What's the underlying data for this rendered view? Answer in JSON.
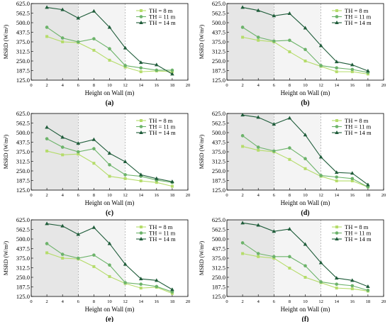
{
  "figure": {
    "colors": {
      "shade_dark": "#e6e6e6",
      "shade_light": "#f4f4f4",
      "th8": "#b5dc6a",
      "th11": "#6cb36a",
      "th14": "#1f5c3a"
    }
  },
  "chart_data": [
    {
      "type": "line",
      "panel_label": "(a)",
      "xlabel": "Height on Wall (m)",
      "ylabel": "MSRD (W/m²)",
      "xlim": [
        0,
        20
      ],
      "ylim": [
        125,
        625
      ],
      "xticks": [
        0,
        2,
        4,
        6,
        8,
        10,
        12,
        14,
        16,
        18,
        20
      ],
      "yticks": [
        "125.0",
        "187.5",
        "250.0",
        "312.5",
        "375.0",
        "437.5",
        "500.0",
        "562.5",
        "625.0"
      ],
      "shaded_regions": [
        [
          0,
          6
        ],
        [
          6,
          12
        ],
        [
          12,
          20
        ]
      ],
      "legend_position": "top-right",
      "x": [
        2,
        4,
        6,
        8,
        10,
        12,
        14,
        16,
        18
      ],
      "series": [
        {
          "name": "TH = 8 m",
          "values": [
            410,
            375,
            370,
            320,
            255,
            210,
            180,
            185,
            180
          ]
        },
        {
          "name": "TH = 11 m",
          "values": [
            470,
            400,
            375,
            395,
            330,
            220,
            205,
            190,
            190
          ]
        },
        {
          "name": "TH = 14 m",
          "values": [
            600,
            585,
            530,
            575,
            470,
            335,
            240,
            225,
            165
          ]
        }
      ]
    },
    {
      "type": "line",
      "panel_label": "(b)",
      "xlabel": "Height on Wall (m)",
      "ylabel": "MSRD (W/m²)",
      "xlim": [
        0,
        20
      ],
      "ylim": [
        125,
        625
      ],
      "xticks": [
        0,
        2,
        4,
        6,
        8,
        10,
        12,
        14,
        16,
        18,
        20
      ],
      "yticks": [
        "125.0",
        "187.5",
        "250.0",
        "312.5",
        "375.0",
        "437.5",
        "500.0",
        "562.5",
        "625.0"
      ],
      "shaded_regions": [
        [
          0,
          6
        ],
        [
          6,
          12
        ],
        [
          12,
          20
        ]
      ],
      "legend_position": "top-right",
      "x": [
        2,
        4,
        6,
        8,
        10,
        12,
        14,
        16,
        18
      ],
      "series": [
        {
          "name": "TH = 8 m",
          "values": [
            405,
            385,
            375,
            310,
            250,
            215,
            180,
            180,
            165
          ]
        },
        {
          "name": "TH = 11 m",
          "values": [
            470,
            405,
            380,
            385,
            325,
            220,
            205,
            195,
            175
          ]
        },
        {
          "name": "TH = 14 m",
          "values": [
            600,
            580,
            545,
            560,
            465,
            350,
            245,
            225,
            185
          ]
        }
      ]
    },
    {
      "type": "line",
      "panel_label": "(c)",
      "xlabel": "Height on Wall (m)",
      "ylabel": "MSRD (W/m²)",
      "xlim": [
        0,
        20
      ],
      "ylim": [
        125,
        625
      ],
      "xticks": [
        0,
        2,
        4,
        6,
        8,
        10,
        12,
        14,
        16,
        18,
        20
      ],
      "yticks": [
        "125.0",
        "187.5",
        "250.0",
        "312.5",
        "375.0",
        "437.5",
        "500.0",
        "562.5",
        "625.0"
      ],
      "shaded_regions": [
        [
          0,
          6
        ],
        [
          6,
          12
        ],
        [
          12,
          20
        ]
      ],
      "legend_position": "top-right",
      "x": [
        2,
        4,
        6,
        8,
        10,
        12,
        14,
        16,
        18
      ],
      "series": [
        {
          "name": "TH = 8 m",
          "values": [
            380,
            355,
            360,
            300,
            215,
            200,
            185,
            175,
            150
          ]
        },
        {
          "name": "TH = 11 m",
          "values": [
            460,
            405,
            375,
            395,
            290,
            225,
            215,
            190,
            175
          ]
        },
        {
          "name": "TH = 14 m",
          "values": [
            535,
            470,
            430,
            455,
            365,
            310,
            225,
            200,
            180
          ]
        }
      ]
    },
    {
      "type": "line",
      "panel_label": "(d)",
      "xlabel": "Height on Wall (m)",
      "ylabel": "MSRD (W/m²)",
      "xlim": [
        0,
        20
      ],
      "ylim": [
        125,
        625
      ],
      "xticks": [
        0,
        2,
        4,
        6,
        8,
        10,
        12,
        14,
        16,
        18,
        20
      ],
      "yticks": [
        "125.0",
        "187.5",
        "250.0",
        "312.5",
        "375.0",
        "437.5",
        "500.0",
        "562.5",
        "625.0"
      ],
      "shaded_regions": [
        [
          0,
          6
        ],
        [
          6,
          12
        ],
        [
          12,
          20
        ]
      ],
      "legend_position": "top-right",
      "x": [
        2,
        4,
        6,
        8,
        10,
        12,
        14,
        16,
        18
      ],
      "series": [
        {
          "name": "TH = 8 m",
          "values": [
            410,
            385,
            375,
            325,
            265,
            215,
            185,
            185,
            145
          ]
        },
        {
          "name": "TH = 11 m",
          "values": [
            480,
            405,
            380,
            400,
            330,
            220,
            210,
            200,
            145
          ]
        },
        {
          "name": "TH = 14 m",
          "values": [
            615,
            600,
            555,
            595,
            485,
            340,
            240,
            235,
            160
          ]
        }
      ]
    },
    {
      "type": "line",
      "panel_label": "(e)",
      "xlabel": "Height on Wall (m)",
      "ylabel": "MSRD (W/m²)",
      "xlim": [
        0,
        20
      ],
      "ylim": [
        125,
        625
      ],
      "xticks": [
        0,
        2,
        4,
        6,
        8,
        10,
        12,
        14,
        16,
        18,
        20
      ],
      "yticks": [
        "125.0",
        "187.5",
        "250.0",
        "312.5",
        "375.0",
        "437.5",
        "500.0",
        "562.5",
        "625.0"
      ],
      "shaded_regions": [
        [
          0,
          6
        ],
        [
          6,
          12
        ],
        [
          12,
          20
        ]
      ],
      "legend_position": "top-right",
      "x": [
        2,
        4,
        6,
        8,
        10,
        12,
        14,
        16,
        18
      ],
      "series": [
        {
          "name": "TH = 8 m",
          "values": [
            410,
            375,
            370,
            320,
            255,
            210,
            180,
            185,
            145
          ]
        },
        {
          "name": "TH = 11 m",
          "values": [
            470,
            400,
            375,
            395,
            330,
            215,
            205,
            190,
            155
          ]
        },
        {
          "name": "TH = 14 m",
          "values": [
            600,
            585,
            530,
            575,
            470,
            335,
            240,
            230,
            170
          ]
        }
      ]
    },
    {
      "type": "line",
      "panel_label": "(f)",
      "xlabel": "Height on Wall (m)",
      "ylabel": "MSRD (W/m²)",
      "xlim": [
        0,
        20
      ],
      "ylim": [
        125,
        625
      ],
      "xticks": [
        0,
        2,
        4,
        6,
        8,
        10,
        12,
        14,
        16,
        18,
        20
      ],
      "yticks": [
        "125.0",
        "187.5",
        "250.0",
        "312.5",
        "375.0",
        "437.5",
        "500.0",
        "562.5",
        "625.0"
      ],
      "shaded_regions": [
        [
          0,
          6
        ],
        [
          6,
          12
        ],
        [
          12,
          20
        ]
      ],
      "legend_position": "top-right",
      "x": [
        2,
        4,
        6,
        8,
        10,
        12,
        14,
        16,
        18
      ],
      "series": [
        {
          "name": "TH = 8 m",
          "values": [
            405,
            385,
            375,
            310,
            250,
            215,
            180,
            175,
            160
          ]
        },
        {
          "name": "TH = 11 m",
          "values": [
            475,
            405,
            385,
            385,
            325,
            220,
            205,
            195,
            165
          ]
        },
        {
          "name": "TH = 14 m",
          "values": [
            605,
            590,
            550,
            565,
            465,
            345,
            245,
            230,
            190
          ]
        }
      ]
    }
  ]
}
